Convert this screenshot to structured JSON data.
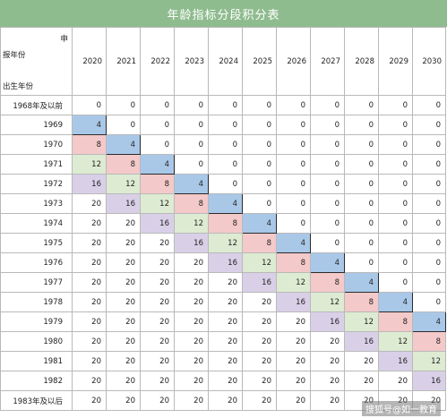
{
  "title": "年龄指标分段积分表",
  "corner": {
    "top": "申",
    "middle": "报年份",
    "bottom": "出生年份"
  },
  "years": [
    "2020",
    "2021",
    "2022",
    "2023",
    "2024",
    "2025",
    "2026",
    "2027",
    "2028",
    "2029",
    "2030"
  ],
  "colors": {
    "4": "#a9c8e8",
    "8": "#f4c9c9",
    "12": "#ddebd2",
    "16": "#d9d0e8"
  },
  "rows": [
    {
      "label": "1968年及以前",
      "values": [
        0,
        0,
        0,
        0,
        0,
        0,
        0,
        0,
        0,
        0,
        0
      ]
    },
    {
      "label": "1969",
      "values": [
        4,
        0,
        0,
        0,
        0,
        0,
        0,
        0,
        0,
        0,
        0
      ]
    },
    {
      "label": "1970",
      "values": [
        8,
        4,
        0,
        0,
        0,
        0,
        0,
        0,
        0,
        0,
        0
      ]
    },
    {
      "label": "1971",
      "values": [
        12,
        8,
        4,
        0,
        0,
        0,
        0,
        0,
        0,
        0,
        0
      ]
    },
    {
      "label": "1972",
      "values": [
        16,
        12,
        8,
        4,
        0,
        0,
        0,
        0,
        0,
        0,
        0
      ]
    },
    {
      "label": "1973",
      "values": [
        20,
        16,
        12,
        8,
        4,
        0,
        0,
        0,
        0,
        0,
        0
      ]
    },
    {
      "label": "1974",
      "values": [
        20,
        20,
        16,
        12,
        8,
        4,
        0,
        0,
        0,
        0,
        0
      ]
    },
    {
      "label": "1975",
      "values": [
        20,
        20,
        20,
        16,
        12,
        8,
        4,
        0,
        0,
        0,
        0
      ]
    },
    {
      "label": "1976",
      "values": [
        20,
        20,
        20,
        20,
        16,
        12,
        8,
        4,
        0,
        0,
        0
      ]
    },
    {
      "label": "1977",
      "values": [
        20,
        20,
        20,
        20,
        20,
        16,
        12,
        8,
        4,
        0,
        0
      ]
    },
    {
      "label": "1978",
      "values": [
        20,
        20,
        20,
        20,
        20,
        20,
        16,
        12,
        8,
        4,
        0
      ]
    },
    {
      "label": "1979",
      "values": [
        20,
        20,
        20,
        20,
        20,
        20,
        20,
        16,
        12,
        8,
        4
      ]
    },
    {
      "label": "1980",
      "values": [
        20,
        20,
        20,
        20,
        20,
        20,
        20,
        20,
        16,
        12,
        8
      ]
    },
    {
      "label": "1981",
      "values": [
        20,
        20,
        20,
        20,
        20,
        20,
        20,
        20,
        20,
        16,
        12
      ]
    },
    {
      "label": "1982",
      "values": [
        20,
        20,
        20,
        20,
        20,
        20,
        20,
        20,
        20,
        20,
        16
      ]
    },
    {
      "label": "1983年及以后",
      "values": [
        20,
        20,
        20,
        20,
        20,
        20,
        20,
        20,
        20,
        20,
        20
      ]
    }
  ],
  "watermark": "搜狐号@如一教育"
}
